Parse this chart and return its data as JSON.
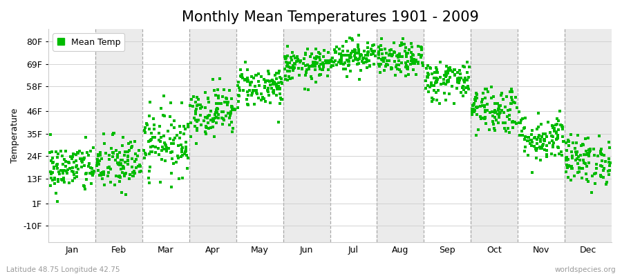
{
  "title": "Monthly Mean Temperatures 1901 - 2009",
  "ylabel": "Temperature",
  "xlabel_labels": [
    "Jan",
    "Feb",
    "Mar",
    "Apr",
    "May",
    "Jun",
    "Jul",
    "Aug",
    "Sep",
    "Oct",
    "Nov",
    "Dec"
  ],
  "ytick_labels": [
    "-10F",
    "1F",
    "13F",
    "24F",
    "35F",
    "46F",
    "58F",
    "69F",
    "80F"
  ],
  "ytick_values": [
    -10,
    1,
    13,
    24,
    35,
    46,
    58,
    69,
    80
  ],
  "ylim": [
    -18,
    86
  ],
  "dot_color": "#00bb00",
  "background_color": "#ffffff",
  "plot_bg_color": "#ffffff",
  "alt_band_color": "#ebebeb",
  "grid_color": "#888888",
  "title_fontsize": 15,
  "axis_fontsize": 9,
  "tick_fontsize": 9,
  "footer_left": "Latitude 48.75 Longitude 42.75",
  "footer_right": "worldspecies.org",
  "legend_label": "Mean Temp",
  "num_years": 109,
  "seed": 42,
  "monthly_means_F": [
    18,
    20,
    31,
    46,
    58,
    68,
    73,
    71,
    61,
    47,
    33,
    22
  ],
  "monthly_stds_F": [
    6,
    7,
    8,
    6,
    5,
    4,
    4,
    4,
    5,
    6,
    6,
    6
  ]
}
